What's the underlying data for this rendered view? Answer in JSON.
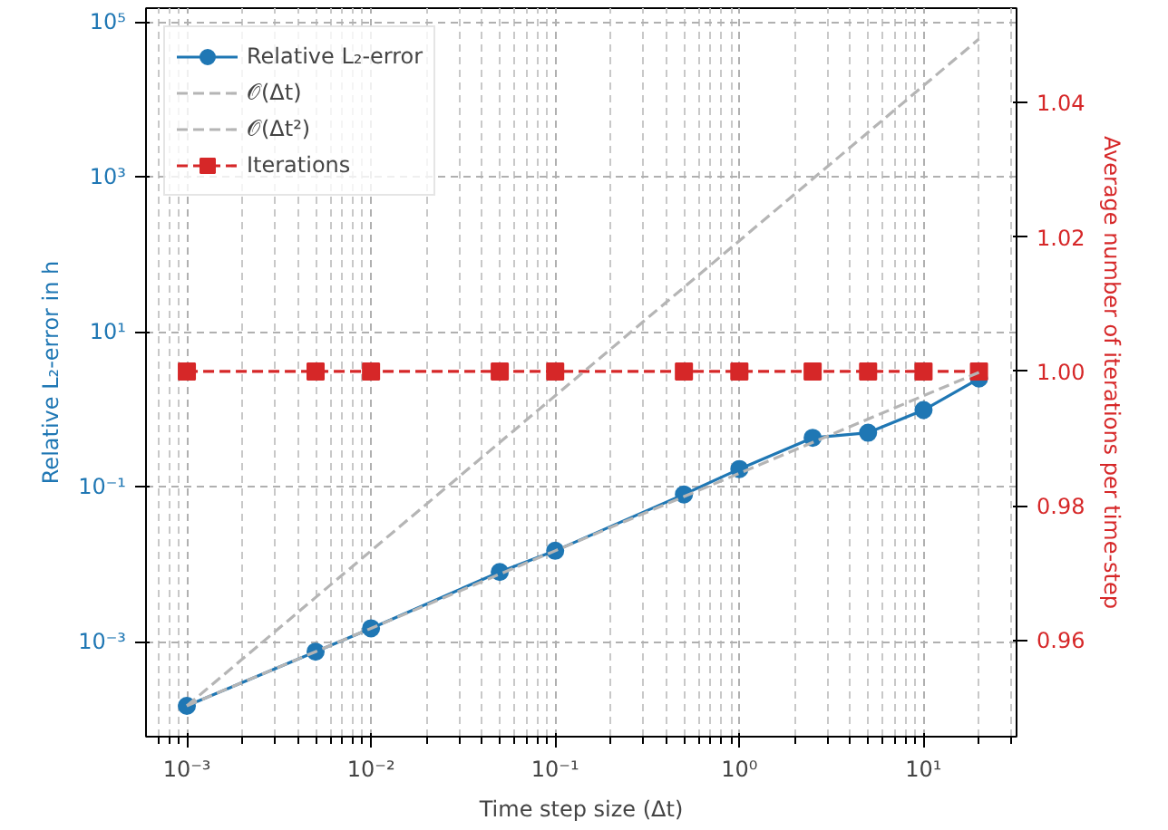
{
  "chart_data": {
    "type": "line",
    "xlabel": "Time step size (Δt)",
    "ylabel": "Relative L₂-error in h",
    "y2label": "Average number of iterations per time-step",
    "x": [
      0.001,
      0.005,
      0.01,
      0.05,
      0.1,
      0.5,
      1,
      2.5,
      5,
      10,
      20
    ],
    "series": [
      {
        "name": "Relative L₂-error",
        "color": "#1f77b4",
        "marker": "circle",
        "line_style": "solid",
        "values": [
          0.00015,
          0.00075,
          0.0015,
          0.008,
          0.015,
          0.08,
          0.17,
          0.43,
          0.5,
          0.98,
          2.5
        ]
      },
      {
        "name": "𝒪(Δt)",
        "color": "#b5b5b5",
        "marker": "none",
        "line_style": "dashed",
        "values": [
          0.00015,
          0.00075,
          0.0015,
          0.0075,
          0.015,
          0.075,
          0.15,
          0.375,
          0.75,
          1.5,
          3
        ]
      },
      {
        "name": "𝒪(Δt²)",
        "color": "#b5b5b5",
        "marker": "none",
        "line_style": "dashed",
        "values": [
          0.00015,
          0.00375,
          0.015,
          0.375,
          1.5,
          37.5,
          150,
          937.5,
          3750,
          15000,
          60000
        ]
      },
      {
        "name": "Iterations",
        "color": "#d62728",
        "marker": "square",
        "line_style": "dashed",
        "axis": "y2",
        "values": [
          1,
          1,
          1,
          1,
          1,
          1,
          1,
          1,
          1,
          1,
          1
        ]
      }
    ],
    "log": "xy",
    "xlim": [
      0.0006,
      32
    ],
    "ylim": [
      6e-05,
      150000
    ],
    "y2lim": [
      0.9456,
      1.0541
    ],
    "xticks": [
      {
        "value": 0.0007,
        "label": null
      },
      {
        "value": 0.0008,
        "label": null
      },
      {
        "value": 0.0009,
        "label": null
      },
      {
        "value": 0.001,
        "label": "10⁻³"
      },
      {
        "value": 0.002,
        "label": null
      },
      {
        "value": 0.003,
        "label": null
      },
      {
        "value": 0.004,
        "label": null
      },
      {
        "value": 0.005,
        "label": null
      },
      {
        "value": 0.006,
        "label": null
      },
      {
        "value": 0.007,
        "label": null
      },
      {
        "value": 0.008,
        "label": null
      },
      {
        "value": 0.009,
        "label": null
      },
      {
        "value": 0.01,
        "label": "10⁻²"
      },
      {
        "value": 0.02,
        "label": null
      },
      {
        "value": 0.03,
        "label": null
      },
      {
        "value": 0.04,
        "label": null
      },
      {
        "value": 0.05,
        "label": null
      },
      {
        "value": 0.06,
        "label": null
      },
      {
        "value": 0.07,
        "label": null
      },
      {
        "value": 0.08,
        "label": null
      },
      {
        "value": 0.09,
        "label": null
      },
      {
        "value": 0.1,
        "label": "10⁻¹"
      },
      {
        "value": 0.2,
        "label": null
      },
      {
        "value": 0.3,
        "label": null
      },
      {
        "value": 0.4,
        "label": null
      },
      {
        "value": 0.5,
        "label": null
      },
      {
        "value": 0.6,
        "label": null
      },
      {
        "value": 0.7,
        "label": null
      },
      {
        "value": 0.8,
        "label": null
      },
      {
        "value": 0.9,
        "label": null
      },
      {
        "value": 1,
        "label": "10⁰"
      },
      {
        "value": 2,
        "label": null
      },
      {
        "value": 3,
        "label": null
      },
      {
        "value": 4,
        "label": null
      },
      {
        "value": 5,
        "label": null
      },
      {
        "value": 6,
        "label": null
      },
      {
        "value": 7,
        "label": null
      },
      {
        "value": 8,
        "label": null
      },
      {
        "value": 9,
        "label": null
      },
      {
        "value": 10,
        "label": "10¹"
      },
      {
        "value": 20,
        "label": null
      },
      {
        "value": 30,
        "label": null
      }
    ],
    "yticks": [
      {
        "value": 0.001,
        "label": "10⁻³"
      },
      {
        "value": 0.1,
        "label": "10⁻¹"
      },
      {
        "value": 10,
        "label": "10¹"
      },
      {
        "value": 1000,
        "label": "10³"
      },
      {
        "value": 100000,
        "label": "10⁵"
      }
    ],
    "y2ticks": [
      {
        "value": 0.96,
        "label": "0.96"
      },
      {
        "value": 0.98,
        "label": "0.98"
      },
      {
        "value": 1,
        "label": "1.00"
      },
      {
        "value": 1.02,
        "label": "1.02"
      },
      {
        "value": 1.04,
        "label": "1.04"
      }
    ],
    "grid": true,
    "legend": "top left"
  }
}
